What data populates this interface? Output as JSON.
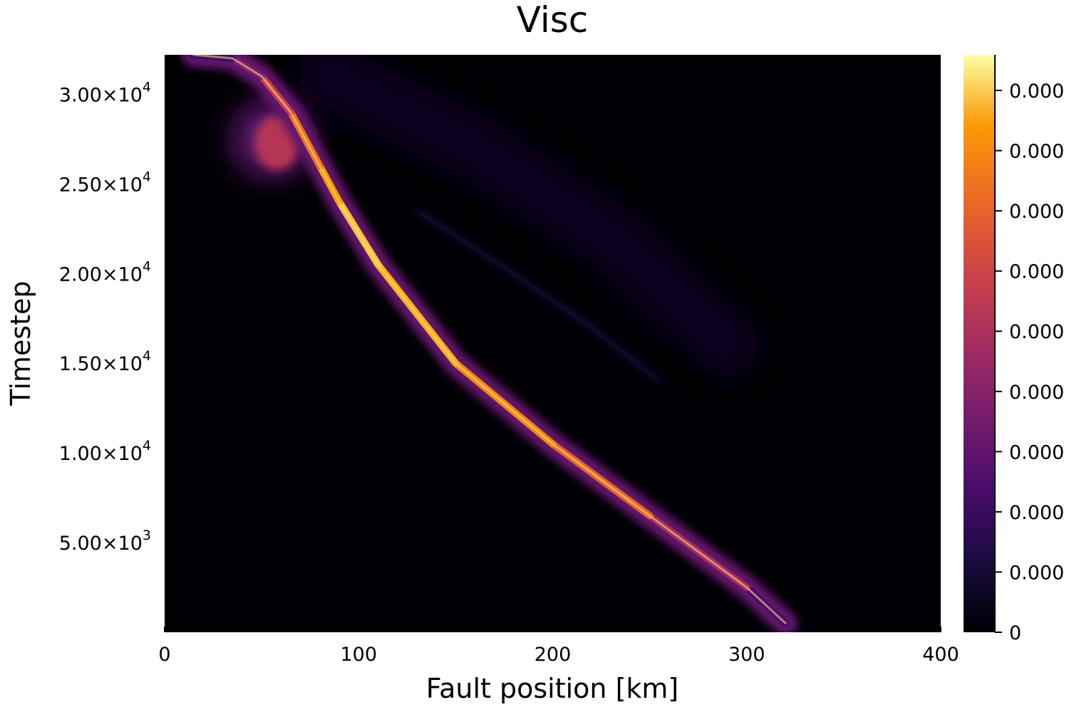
{
  "chart_data": {
    "type": "heatmap",
    "title": "Visc",
    "xlabel": "Fault position [km]",
    "ylabel": "Timestep",
    "xlim": [
      0,
      400
    ],
    "ylim": [
      0,
      32200
    ],
    "x_ticks": [
      {
        "value": 0,
        "label": "0"
      },
      {
        "value": 100,
        "label": "100"
      },
      {
        "value": 200,
        "label": "200"
      },
      {
        "value": 300,
        "label": "300"
      },
      {
        "value": 400,
        "label": "400"
      }
    ],
    "y_ticks": [
      {
        "value": 5000,
        "mantissa": "5.00×10",
        "exponent": "3"
      },
      {
        "value": 10000,
        "mantissa": "1.00×10",
        "exponent": "4"
      },
      {
        "value": 15000,
        "mantissa": "1.50×10",
        "exponent": "4"
      },
      {
        "value": 20000,
        "mantissa": "2.00×10",
        "exponent": "4"
      },
      {
        "value": 25000,
        "mantissa": "2.50×10",
        "exponent": "4"
      },
      {
        "value": 30000,
        "mantissa": "3.00×10",
        "exponent": "4"
      }
    ],
    "colorbar": {
      "colormap": "inferno",
      "min": 0,
      "max": 1,
      "tick_labels": [
        "0",
        "0.000",
        "0.000",
        "0.000",
        "0.000",
        "0.000",
        "0.000",
        "0.000",
        "0.000",
        "0.000"
      ]
    },
    "features": [
      {
        "name": "main-front",
        "path": [
          [
            320,
            500
          ],
          [
            300,
            2500
          ],
          [
            250,
            6500
          ],
          [
            200,
            10500
          ],
          [
            150,
            15000
          ],
          [
            110,
            20500
          ],
          [
            90,
            24000
          ],
          [
            80,
            26000
          ],
          [
            65,
            29000
          ],
          [
            50,
            31000
          ],
          [
            35,
            32000
          ],
          [
            15,
            32200
          ]
        ],
        "intensity": [
          0.15,
          0.35,
          0.65,
          0.8,
          0.85,
          0.95,
          0.9,
          0.85,
          0.7,
          0.5,
          0.3,
          0.15
        ]
      },
      {
        "name": "upper-left-lobe",
        "x": 55,
        "y": 27500,
        "intensity": 0.55
      },
      {
        "name": "faint-secondary-front",
        "path": [
          [
            130,
            23500
          ],
          [
            180,
            20000
          ],
          [
            220,
            17000
          ],
          [
            255,
            14000
          ]
        ],
        "intensity": 0.12
      },
      {
        "name": "faint-diffuse-region",
        "path": [
          [
            85,
            31000
          ],
          [
            160,
            27000
          ],
          [
            230,
            22000
          ],
          [
            290,
            16000
          ]
        ],
        "intensity": 0.06
      }
    ]
  }
}
